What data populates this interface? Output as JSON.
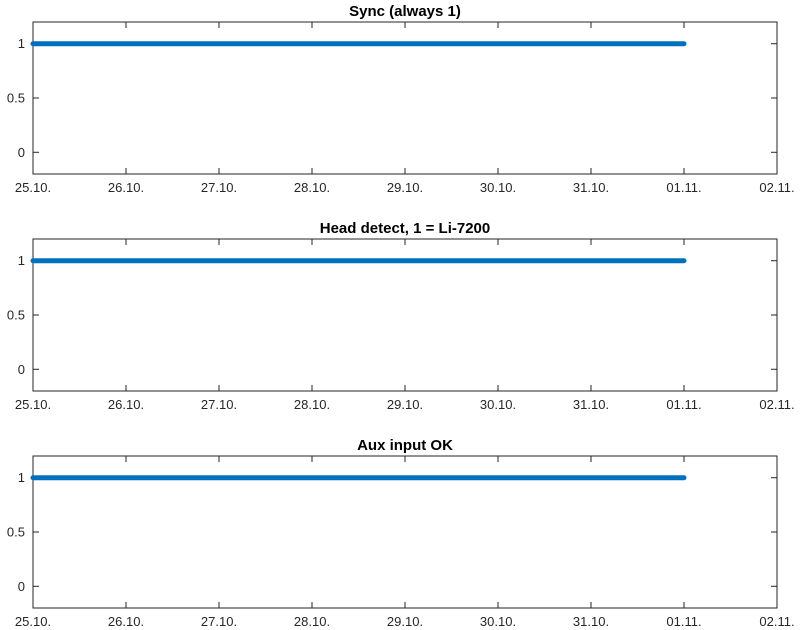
{
  "colors": {
    "series": "#0072BD",
    "axes": "#262626"
  },
  "chart_data": [
    {
      "type": "line",
      "title": "Sync (always 1)",
      "x_tick_labels": [
        "25.10.",
        "26.10.",
        "27.10.",
        "28.10.",
        "29.10.",
        "30.10.",
        "31.10.",
        "01.11.",
        "02.11."
      ],
      "y_ticks": [
        0,
        0.5,
        1
      ],
      "y_tick_labels": [
        "0",
        "0.5",
        "1"
      ],
      "xlim": [
        "25.10.",
        "02.11."
      ],
      "ylim": [
        -0.2,
        1.2
      ],
      "grid": false,
      "series": [
        {
          "x_start": "25.10.",
          "x_end": "01.11.",
          "value": 1
        }
      ]
    },
    {
      "type": "line",
      "title": "Head detect, 1 = Li-7200",
      "x_tick_labels": [
        "25.10.",
        "26.10.",
        "27.10.",
        "28.10.",
        "29.10.",
        "30.10.",
        "31.10.",
        "01.11.",
        "02.11."
      ],
      "y_ticks": [
        0,
        0.5,
        1
      ],
      "y_tick_labels": [
        "0",
        "0.5",
        "1"
      ],
      "xlim": [
        "25.10.",
        "02.11."
      ],
      "ylim": [
        -0.2,
        1.2
      ],
      "grid": false,
      "series": [
        {
          "x_start": "25.10.",
          "x_end": "01.11.",
          "value": 1
        }
      ]
    },
    {
      "type": "line",
      "title": "Aux input OK",
      "x_tick_labels": [
        "25.10.",
        "26.10.",
        "27.10.",
        "28.10.",
        "29.10.",
        "30.10.",
        "31.10.",
        "01.11.",
        "02.11."
      ],
      "y_ticks": [
        0,
        0.5,
        1
      ],
      "y_tick_labels": [
        "0",
        "0.5",
        "1"
      ],
      "xlim": [
        "25.10.",
        "02.11."
      ],
      "ylim": [
        -0.2,
        1.2
      ],
      "grid": false,
      "series": [
        {
          "x_start": "25.10.",
          "x_end": "01.11.",
          "value": 1
        }
      ]
    }
  ]
}
